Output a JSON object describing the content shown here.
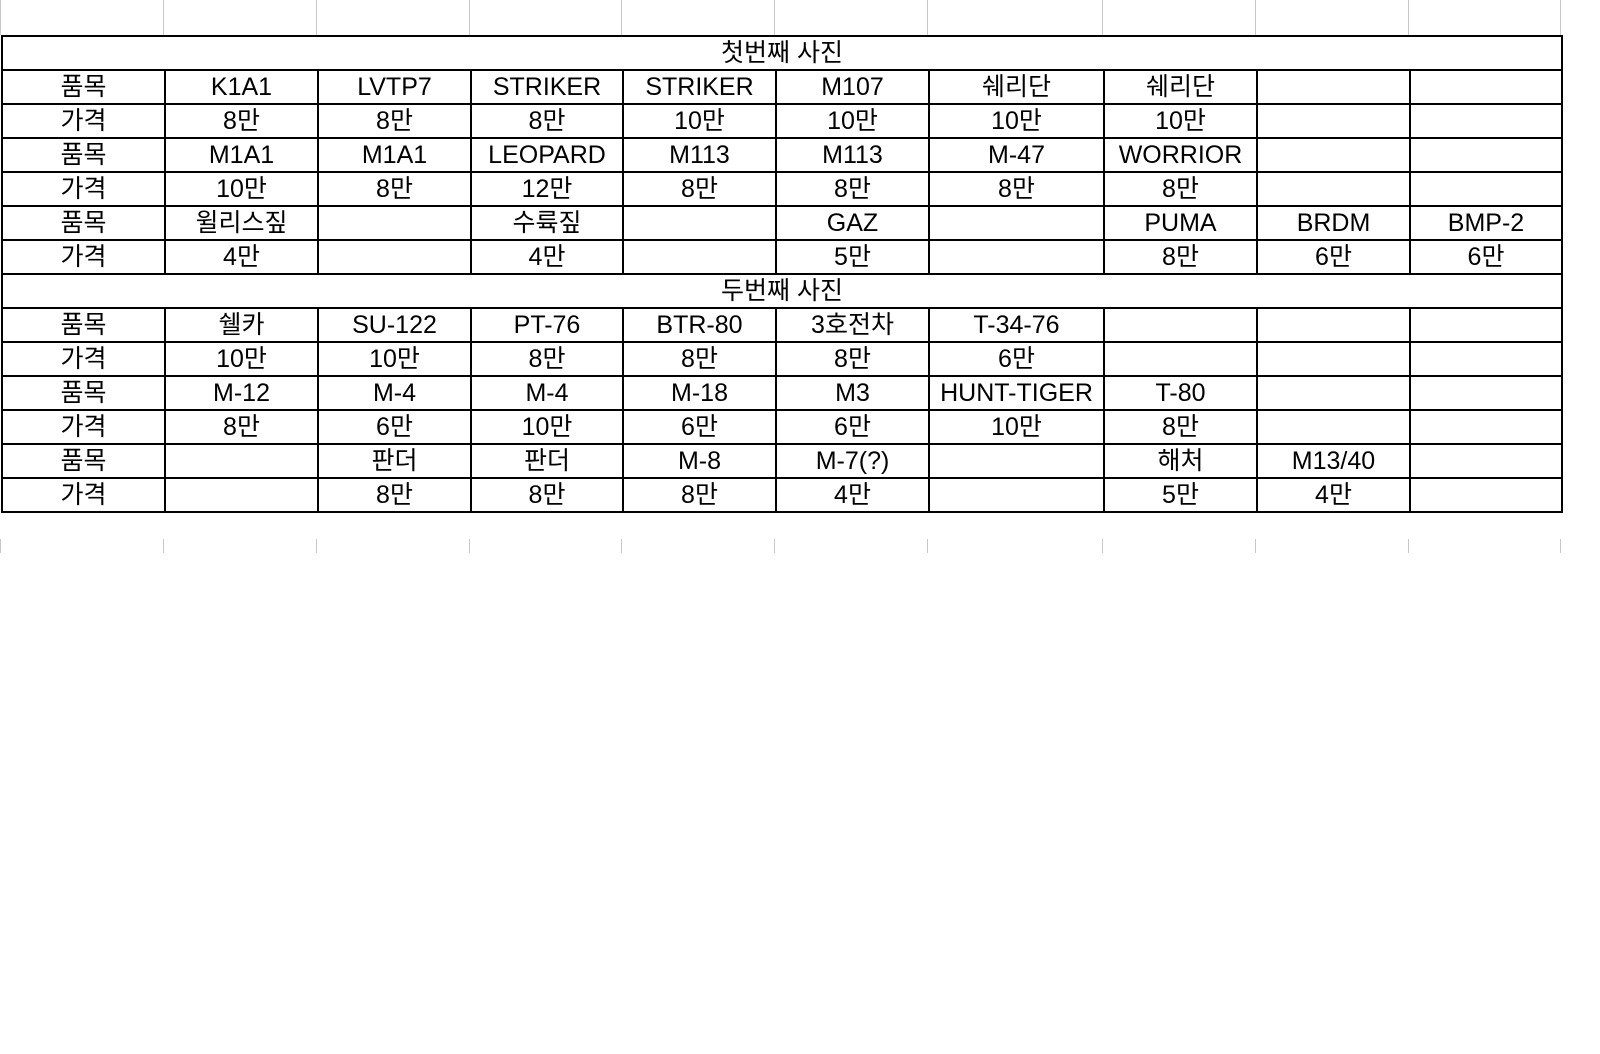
{
  "sheet": {
    "sections": [
      {
        "title": "첫번째 사진",
        "rows": [
          [
            "품목",
            "K1A1",
            "LVTP7",
            "STRIKER",
            "STRIKER",
            "M107",
            "쉐리단",
            "쉐리단",
            "",
            ""
          ],
          [
            "가격",
            "8만",
            "8만",
            "8만",
            "10만",
            "10만",
            "10만",
            "10만",
            "",
            ""
          ],
          [
            "품목",
            "M1A1",
            "M1A1",
            "LEOPARD",
            "M113",
            "M113",
            "M-47",
            "WORRIOR",
            "",
            ""
          ],
          [
            "가격",
            "10만",
            "8만",
            "12만",
            "8만",
            "8만",
            "8만",
            "8만",
            "",
            ""
          ],
          [
            "품목",
            "윌리스짚",
            "",
            "수륙짚",
            "",
            "GAZ",
            "",
            "PUMA",
            "BRDM",
            "BMP-2"
          ],
          [
            "가격",
            "4만",
            "",
            "4만",
            "",
            "5만",
            "",
            "8만",
            "6만",
            "6만"
          ]
        ]
      },
      {
        "title": "두번째 사진",
        "rows": [
          [
            "품목",
            "쉘카",
            "SU-122",
            "PT-76",
            "BTR-80",
            "3호전차",
            "T-34-76",
            "",
            "",
            ""
          ],
          [
            "가격",
            "10만",
            "10만",
            "8만",
            "8만",
            "8만",
            "6만",
            "",
            "",
            ""
          ],
          [
            "품목",
            "M-12",
            "M-4",
            "M-4",
            "M-18",
            "M3",
            "HUNT-TIGER",
            "T-80",
            "",
            ""
          ],
          [
            "가격",
            "8만",
            "6만",
            "10만",
            "6만",
            "6만",
            "10만",
            "8만",
            "",
            ""
          ],
          [
            "품목",
            "",
            "판더",
            "판더",
            "M-8",
            "M-7(?)",
            "",
            "해처",
            "M13/40",
            ""
          ],
          [
            "가격",
            "",
            "8만",
            "8만",
            "8만",
            "4만",
            "",
            "5만",
            "4만",
            ""
          ]
        ]
      }
    ]
  }
}
